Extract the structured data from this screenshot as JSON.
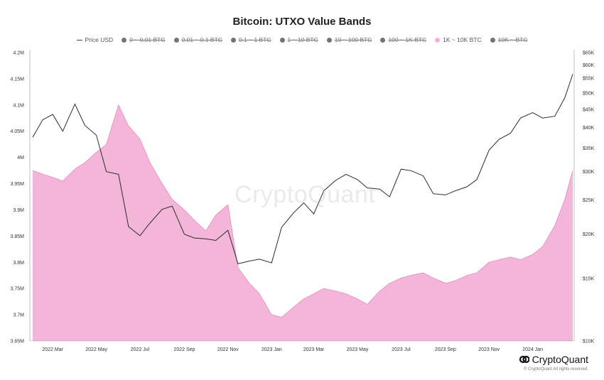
{
  "title": "Bitcoin: UTXO Value Bands",
  "legend": [
    {
      "label": "Price USD",
      "marker": "line",
      "active": true
    },
    {
      "label": "0 ~ 0.01 BTC",
      "marker": "dot",
      "active": false
    },
    {
      "label": "0.01 ~ 0.1 BTC",
      "marker": "dot",
      "active": false
    },
    {
      "label": "0.1 ~ 1 BTC",
      "marker": "dot",
      "active": false
    },
    {
      "label": "1 ~ 10 BTC",
      "marker": "dot",
      "active": false
    },
    {
      "label": "10 ~ 100 BTC",
      "marker": "dot",
      "active": false
    },
    {
      "label": "100 ~ 1K BTC",
      "marker": "dot",
      "active": false
    },
    {
      "label": "1K ~ 10K BTC",
      "marker": "dot",
      "active": true
    },
    {
      "label": "10K ~ BTC",
      "marker": "dot",
      "active": false
    }
  ],
  "watermark": "CryptoQuant",
  "brand": "CryptoQuant",
  "copyright": "© CryptoQuant All rights reserved.",
  "colors": {
    "area_fill": "#f4b6d8",
    "area_stroke": "#e889bd",
    "price_line": "#2b2b2b",
    "inactive_dot": "#74737b"
  },
  "chart_data": {
    "type": "area",
    "x_tick_labels": [
      "2022 Mar",
      "2022 May",
      "2022 Jul",
      "2022 Sep",
      "2022 Nov",
      "2023 Jan",
      "2023 Mar",
      "2023 May",
      "2023 Jul",
      "2023 Sep",
      "2023 Nov",
      "2024 Jan"
    ],
    "y_left": {
      "ticks": [
        "4.2M",
        "4.15M",
        "4.1M",
        "4.05M",
        "4M",
        "3.95M",
        "3.9M",
        "3.85M",
        "3.8M",
        "3.75M",
        "3.7M",
        "3.65M"
      ],
      "ylim": [
        3650000,
        4200000
      ]
    },
    "y_right": {
      "ticks": [
        "$65K",
        "$60K",
        "$55K",
        "$50K",
        "$45K",
        "$40K",
        "$35K",
        "$30K",
        "$25K",
        "$20K",
        "$15K",
        "$10K"
      ],
      "scale": "log",
      "ylim": [
        10000,
        65000
      ]
    },
    "grid": false,
    "x": [
      "2022-02-01",
      "2022-02-15",
      "2022-03-01",
      "2022-03-15",
      "2022-04-01",
      "2022-04-15",
      "2022-05-01",
      "2022-05-15",
      "2022-06-01",
      "2022-06-15",
      "2022-07-01",
      "2022-07-15",
      "2022-08-01",
      "2022-08-15",
      "2022-09-01",
      "2022-09-15",
      "2022-10-01",
      "2022-10-15",
      "2022-11-01",
      "2022-11-15",
      "2022-12-01",
      "2022-12-15",
      "2023-01-01",
      "2023-01-15",
      "2023-02-01",
      "2023-02-15",
      "2023-03-01",
      "2023-03-15",
      "2023-04-01",
      "2023-04-15",
      "2023-05-01",
      "2023-05-15",
      "2023-06-01",
      "2023-06-15",
      "2023-07-01",
      "2023-07-15",
      "2023-08-01",
      "2023-08-15",
      "2023-09-01",
      "2023-09-15",
      "2023-10-01",
      "2023-10-15",
      "2023-11-01",
      "2023-11-15",
      "2023-12-01",
      "2023-12-15",
      "2024-01-01",
      "2024-01-15",
      "2024-02-01",
      "2024-02-15",
      "2024-02-26"
    ],
    "series": [
      {
        "name": "1K ~ 10K BTC",
        "axis": "left",
        "values": [
          3975000,
          3968000,
          3962000,
          3955000,
          3978000,
          3990000,
          4010000,
          4025000,
          4100000,
          4060000,
          4035000,
          3990000,
          3950000,
          3920000,
          3900000,
          3880000,
          3860000,
          3890000,
          3910000,
          3790000,
          3760000,
          3740000,
          3700000,
          3695000,
          3715000,
          3730000,
          3740000,
          3750000,
          3745000,
          3740000,
          3730000,
          3720000,
          3745000,
          3760000,
          3770000,
          3775000,
          3780000,
          3770000,
          3760000,
          3765000,
          3775000,
          3780000,
          3800000,
          3805000,
          3810000,
          3805000,
          3815000,
          3830000,
          3870000,
          3920000,
          3975000
        ]
      },
      {
        "name": "Price USD",
        "axis": "right",
        "values": [
          37500,
          42000,
          43500,
          39000,
          46500,
          40500,
          38000,
          30000,
          29500,
          21000,
          19800,
          21500,
          23500,
          24000,
          20000,
          19500,
          19400,
          19200,
          20500,
          16500,
          16800,
          17000,
          16600,
          20900,
          23000,
          24500,
          22800,
          26500,
          28400,
          29500,
          28500,
          27000,
          26800,
          25500,
          30500,
          30200,
          29200,
          26000,
          25800,
          26500,
          27200,
          28500,
          34500,
          37000,
          38500,
          42500,
          44000,
          42500,
          43000,
          48500,
          56500
        ]
      }
    ]
  }
}
